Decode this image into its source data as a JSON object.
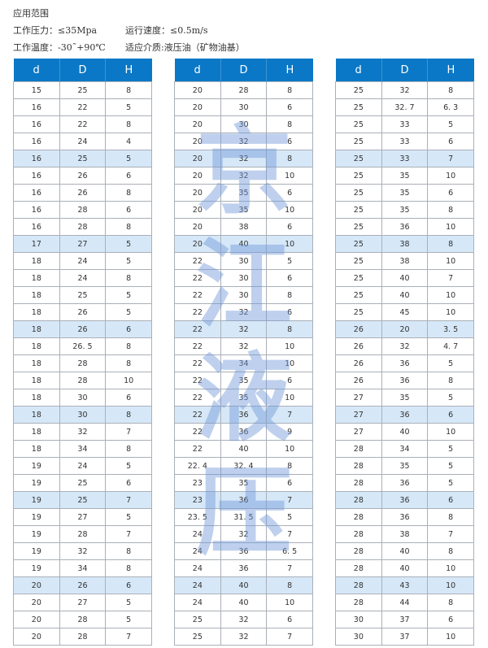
{
  "header": {
    "title": "应用范围",
    "pressure": "工作压力：≤35Mpa",
    "speed": "运行速度：≤0.5m/s",
    "temperature": "工作温度：-30˜+90℃",
    "medium": "适应介质:液压油（矿物油基）"
  },
  "columns": [
    "d",
    "D",
    "H"
  ],
  "colors": {
    "header": "#0a78c6",
    "highlight_row": "#d6e8f8"
  },
  "watermark": [
    "京",
    "江",
    "液",
    "压"
  ],
  "tables": [
    [
      [
        "15",
        "25",
        "8"
      ],
      [
        "16",
        "22",
        "5"
      ],
      [
        "16",
        "22",
        "8"
      ],
      [
        "16",
        "24",
        "4"
      ],
      [
        "16",
        "25",
        "5"
      ],
      [
        "16",
        "26",
        "6"
      ],
      [
        "16",
        "26",
        "8"
      ],
      [
        "16",
        "28",
        "6"
      ],
      [
        "16",
        "28",
        "8"
      ],
      [
        "17",
        "27",
        "5"
      ],
      [
        "18",
        "24",
        "5"
      ],
      [
        "18",
        "24",
        "8"
      ],
      [
        "18",
        "25",
        "5"
      ],
      [
        "18",
        "26",
        "5"
      ],
      [
        "18",
        "26",
        "6"
      ],
      [
        "18",
        "26. 5",
        "8"
      ],
      [
        "18",
        "28",
        "8"
      ],
      [
        "18",
        "28",
        "10"
      ],
      [
        "18",
        "30",
        "6"
      ],
      [
        "18",
        "30",
        "8"
      ],
      [
        "18",
        "32",
        "7"
      ],
      [
        "18",
        "34",
        "8"
      ],
      [
        "19",
        "24",
        "5"
      ],
      [
        "19",
        "25",
        "6"
      ],
      [
        "19",
        "25",
        "7"
      ],
      [
        "19",
        "27",
        "5"
      ],
      [
        "19",
        "28",
        "7"
      ],
      [
        "19",
        "32",
        "8"
      ],
      [
        "19",
        "34",
        "8"
      ],
      [
        "20",
        "26",
        "6"
      ],
      [
        "20",
        "27",
        "5"
      ],
      [
        "20",
        "28",
        "5"
      ],
      [
        "20",
        "28",
        "7"
      ]
    ],
    [
      [
        "20",
        "28",
        "8"
      ],
      [
        "20",
        "30",
        "6"
      ],
      [
        "20",
        "30",
        "8"
      ],
      [
        "20",
        "32",
        "6"
      ],
      [
        "20",
        "32",
        "8"
      ],
      [
        "20",
        "32",
        "10"
      ],
      [
        "20",
        "35",
        "6"
      ],
      [
        "20",
        "35",
        "10"
      ],
      [
        "20",
        "38",
        "6"
      ],
      [
        "20",
        "40",
        "10"
      ],
      [
        "22",
        "30",
        "5"
      ],
      [
        "22",
        "30",
        "6"
      ],
      [
        "22",
        "30",
        "8"
      ],
      [
        "22",
        "32",
        "6"
      ],
      [
        "22",
        "32",
        "8"
      ],
      [
        "22",
        "32",
        "10"
      ],
      [
        "22",
        "34",
        "10"
      ],
      [
        "22",
        "35",
        "6"
      ],
      [
        "22",
        "35",
        "10"
      ],
      [
        "22",
        "36",
        "7"
      ],
      [
        "22",
        "36",
        "9"
      ],
      [
        "22",
        "40",
        "10"
      ],
      [
        "22. 4",
        "32. 4",
        "8"
      ],
      [
        "23",
        "35",
        "6"
      ],
      [
        "23",
        "36",
        "7"
      ],
      [
        "23. 5",
        "31. 5",
        "5"
      ],
      [
        "24",
        "32",
        "7"
      ],
      [
        "24",
        "36",
        "6. 5"
      ],
      [
        "24",
        "36",
        "7"
      ],
      [
        "24",
        "40",
        "8"
      ],
      [
        "24",
        "40",
        "10"
      ],
      [
        "25",
        "32",
        "6"
      ],
      [
        "25",
        "32",
        "7"
      ]
    ],
    [
      [
        "25",
        "32",
        "8"
      ],
      [
        "25",
        "32. 7",
        "6. 3"
      ],
      [
        "25",
        "33",
        "5"
      ],
      [
        "25",
        "33",
        "6"
      ],
      [
        "25",
        "33",
        "7"
      ],
      [
        "25",
        "35",
        "10"
      ],
      [
        "25",
        "35",
        "6"
      ],
      [
        "25",
        "35",
        "8"
      ],
      [
        "25",
        "36",
        "10"
      ],
      [
        "25",
        "38",
        "8"
      ],
      [
        "25",
        "38",
        "10"
      ],
      [
        "25",
        "40",
        "7"
      ],
      [
        "25",
        "40",
        "10"
      ],
      [
        "25",
        "45",
        "10"
      ],
      [
        "26",
        "20",
        "3. 5"
      ],
      [
        "26",
        "32",
        "4. 7"
      ],
      [
        "26",
        "36",
        "5"
      ],
      [
        "26",
        "36",
        "8"
      ],
      [
        "27",
        "35",
        "5"
      ],
      [
        "27",
        "36",
        "6"
      ],
      [
        "27",
        "40",
        "10"
      ],
      [
        "28",
        "34",
        "5"
      ],
      [
        "28",
        "35",
        "5"
      ],
      [
        "28",
        "36",
        "5"
      ],
      [
        "28",
        "36",
        "6"
      ],
      [
        "28",
        "36",
        "8"
      ],
      [
        "28",
        "38",
        "7"
      ],
      [
        "28",
        "40",
        "8"
      ],
      [
        "28",
        "40",
        "10"
      ],
      [
        "28",
        "43",
        "10"
      ],
      [
        "28",
        "44",
        "8"
      ],
      [
        "30",
        "37",
        "6"
      ],
      [
        "30",
        "37",
        "10"
      ]
    ]
  ]
}
